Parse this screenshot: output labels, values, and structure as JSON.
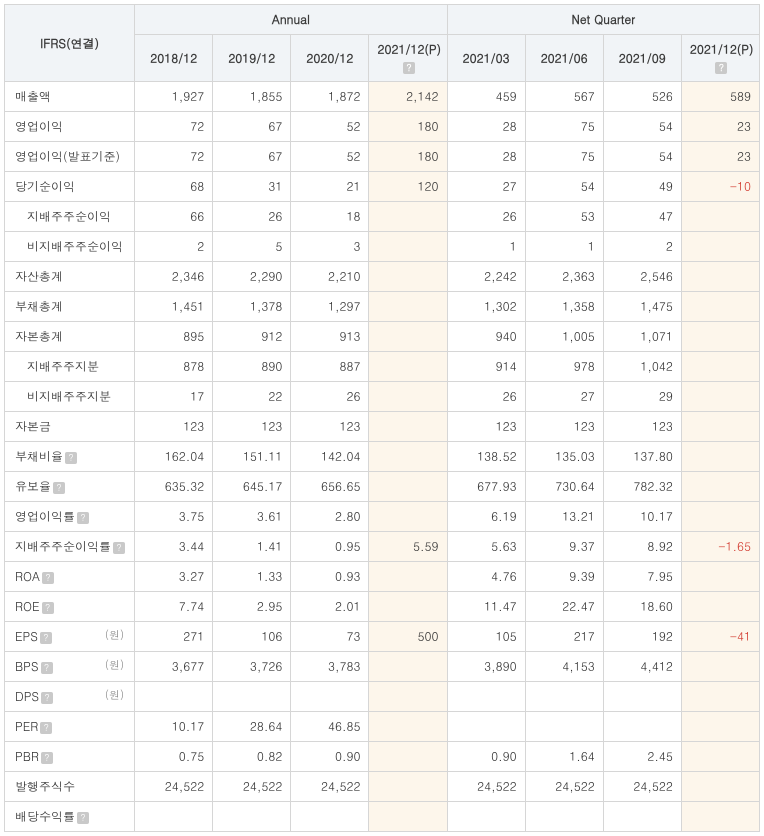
{
  "header": {
    "ifrs_label": "IFRS(연결)",
    "group_annual": "Annual",
    "group_quarter": "Net Quarter",
    "annual_cols": [
      "2018/12",
      "2019/12",
      "2020/12",
      "2021/12(P)"
    ],
    "quarter_cols": [
      "2021/03",
      "2021/06",
      "2021/09",
      "2021/12(P)"
    ],
    "annual_help_on": [
      false,
      false,
      false,
      true
    ],
    "quarter_help_on": [
      false,
      false,
      false,
      true
    ]
  },
  "rows": [
    {
      "label": "매출액",
      "indent": false,
      "help": false,
      "unit": null,
      "annual": [
        "1,927",
        "1,855",
        "1,872",
        "2,142"
      ],
      "quarter": [
        "459",
        "567",
        "526",
        "589"
      ]
    },
    {
      "label": "영업이익",
      "indent": false,
      "help": false,
      "unit": null,
      "annual": [
        "72",
        "67",
        "52",
        "180"
      ],
      "quarter": [
        "28",
        "75",
        "54",
        "23"
      ]
    },
    {
      "label": "영업이익(발표기준)",
      "indent": false,
      "help": false,
      "unit": null,
      "annual": [
        "72",
        "67",
        "52",
        "180"
      ],
      "quarter": [
        "28",
        "75",
        "54",
        "23"
      ]
    },
    {
      "label": "당기순이익",
      "indent": false,
      "help": false,
      "unit": null,
      "annual": [
        "68",
        "31",
        "21",
        "120"
      ],
      "quarter": [
        "27",
        "54",
        "49",
        "-10"
      ],
      "neg_annual": [
        false,
        false,
        false,
        false
      ],
      "neg_quarter": [
        false,
        false,
        false,
        true
      ]
    },
    {
      "label": "지배주주순이익",
      "indent": true,
      "help": false,
      "unit": null,
      "annual": [
        "66",
        "26",
        "18",
        ""
      ],
      "quarter": [
        "26",
        "53",
        "47",
        ""
      ]
    },
    {
      "label": "비지배주주순이익",
      "indent": true,
      "help": false,
      "unit": null,
      "annual": [
        "2",
        "5",
        "3",
        ""
      ],
      "quarter": [
        "1",
        "1",
        "2",
        ""
      ]
    },
    {
      "label": "자산총계",
      "indent": false,
      "help": false,
      "unit": null,
      "annual": [
        "2,346",
        "2,290",
        "2,210",
        ""
      ],
      "quarter": [
        "2,242",
        "2,363",
        "2,546",
        ""
      ]
    },
    {
      "label": "부채총계",
      "indent": false,
      "help": false,
      "unit": null,
      "annual": [
        "1,451",
        "1,378",
        "1,297",
        ""
      ],
      "quarter": [
        "1,302",
        "1,358",
        "1,475",
        ""
      ]
    },
    {
      "label": "자본총계",
      "indent": false,
      "help": false,
      "unit": null,
      "annual": [
        "895",
        "912",
        "913",
        ""
      ],
      "quarter": [
        "940",
        "1,005",
        "1,071",
        ""
      ]
    },
    {
      "label": "지배주주지분",
      "indent": true,
      "help": false,
      "unit": null,
      "annual": [
        "878",
        "890",
        "887",
        ""
      ],
      "quarter": [
        "914",
        "978",
        "1,042",
        ""
      ]
    },
    {
      "label": "비지배주주지분",
      "indent": true,
      "help": false,
      "unit": null,
      "annual": [
        "17",
        "22",
        "26",
        ""
      ],
      "quarter": [
        "26",
        "27",
        "29",
        ""
      ]
    },
    {
      "label": "자본금",
      "indent": false,
      "help": false,
      "unit": null,
      "annual": [
        "123",
        "123",
        "123",
        ""
      ],
      "quarter": [
        "123",
        "123",
        "123",
        ""
      ]
    },
    {
      "label": "부채비율",
      "indent": false,
      "help": true,
      "unit": null,
      "annual": [
        "162.04",
        "151.11",
        "142.04",
        ""
      ],
      "quarter": [
        "138.52",
        "135.03",
        "137.80",
        ""
      ]
    },
    {
      "label": "유보율",
      "indent": false,
      "help": true,
      "unit": null,
      "annual": [
        "635.32",
        "645.17",
        "656.65",
        ""
      ],
      "quarter": [
        "677.93",
        "730.64",
        "782.32",
        ""
      ]
    },
    {
      "label": "영업이익률",
      "indent": false,
      "help": true,
      "unit": null,
      "annual": [
        "3.75",
        "3.61",
        "2.80",
        ""
      ],
      "quarter": [
        "6.19",
        "13.21",
        "10.17",
        ""
      ]
    },
    {
      "label": "지배주주순이익률",
      "indent": false,
      "help": true,
      "unit": null,
      "annual": [
        "3.44",
        "1.41",
        "0.95",
        "5.59"
      ],
      "quarter": [
        "5.63",
        "9.37",
        "8.92",
        "-1.65"
      ],
      "neg_annual": [
        false,
        false,
        false,
        false
      ],
      "neg_quarter": [
        false,
        false,
        false,
        true
      ]
    },
    {
      "label": "ROA",
      "indent": false,
      "help": true,
      "unit": null,
      "annual": [
        "3.27",
        "1.33",
        "0.93",
        ""
      ],
      "quarter": [
        "4.76",
        "9.39",
        "7.95",
        ""
      ]
    },
    {
      "label": "ROE",
      "indent": false,
      "help": true,
      "unit": null,
      "annual": [
        "7.74",
        "2.95",
        "2.01",
        ""
      ],
      "quarter": [
        "11.47",
        "22.47",
        "18.60",
        ""
      ]
    },
    {
      "label": "EPS",
      "indent": false,
      "help": true,
      "unit": "(원)",
      "annual": [
        "271",
        "106",
        "73",
        "500"
      ],
      "quarter": [
        "105",
        "217",
        "192",
        "-41"
      ],
      "neg_annual": [
        false,
        false,
        false,
        false
      ],
      "neg_quarter": [
        false,
        false,
        false,
        true
      ]
    },
    {
      "label": "BPS",
      "indent": false,
      "help": true,
      "unit": "(원)",
      "annual": [
        "3,677",
        "3,726",
        "3,783",
        ""
      ],
      "quarter": [
        "3,890",
        "4,153",
        "4,412",
        ""
      ]
    },
    {
      "label": "DPS",
      "indent": false,
      "help": true,
      "unit": "(원)",
      "annual": [
        "",
        "",
        "",
        ""
      ],
      "quarter": [
        "",
        "",
        "",
        ""
      ]
    },
    {
      "label": "PER",
      "indent": false,
      "help": true,
      "unit": null,
      "annual": [
        "10.17",
        "28.64",
        "46.85",
        ""
      ],
      "quarter": [
        "",
        "",
        "",
        ""
      ]
    },
    {
      "label": "PBR",
      "indent": false,
      "help": true,
      "unit": null,
      "annual": [
        "0.75",
        "0.82",
        "0.90",
        ""
      ],
      "quarter": [
        "0.90",
        "1.64",
        "2.45",
        ""
      ]
    },
    {
      "label": "발행주식수",
      "indent": false,
      "help": false,
      "unit": null,
      "annual": [
        "24,522",
        "24,522",
        "24,522",
        ""
      ],
      "quarter": [
        "24,522",
        "24,522",
        "24,522",
        ""
      ]
    },
    {
      "label": "배당수익률",
      "indent": false,
      "help": true,
      "unit": null,
      "annual": [
        "",
        "",
        "",
        ""
      ],
      "quarter": [
        "",
        "",
        "",
        ""
      ]
    }
  ],
  "highlight_annual_idx": 3,
  "highlight_quarter_idx": 3
}
